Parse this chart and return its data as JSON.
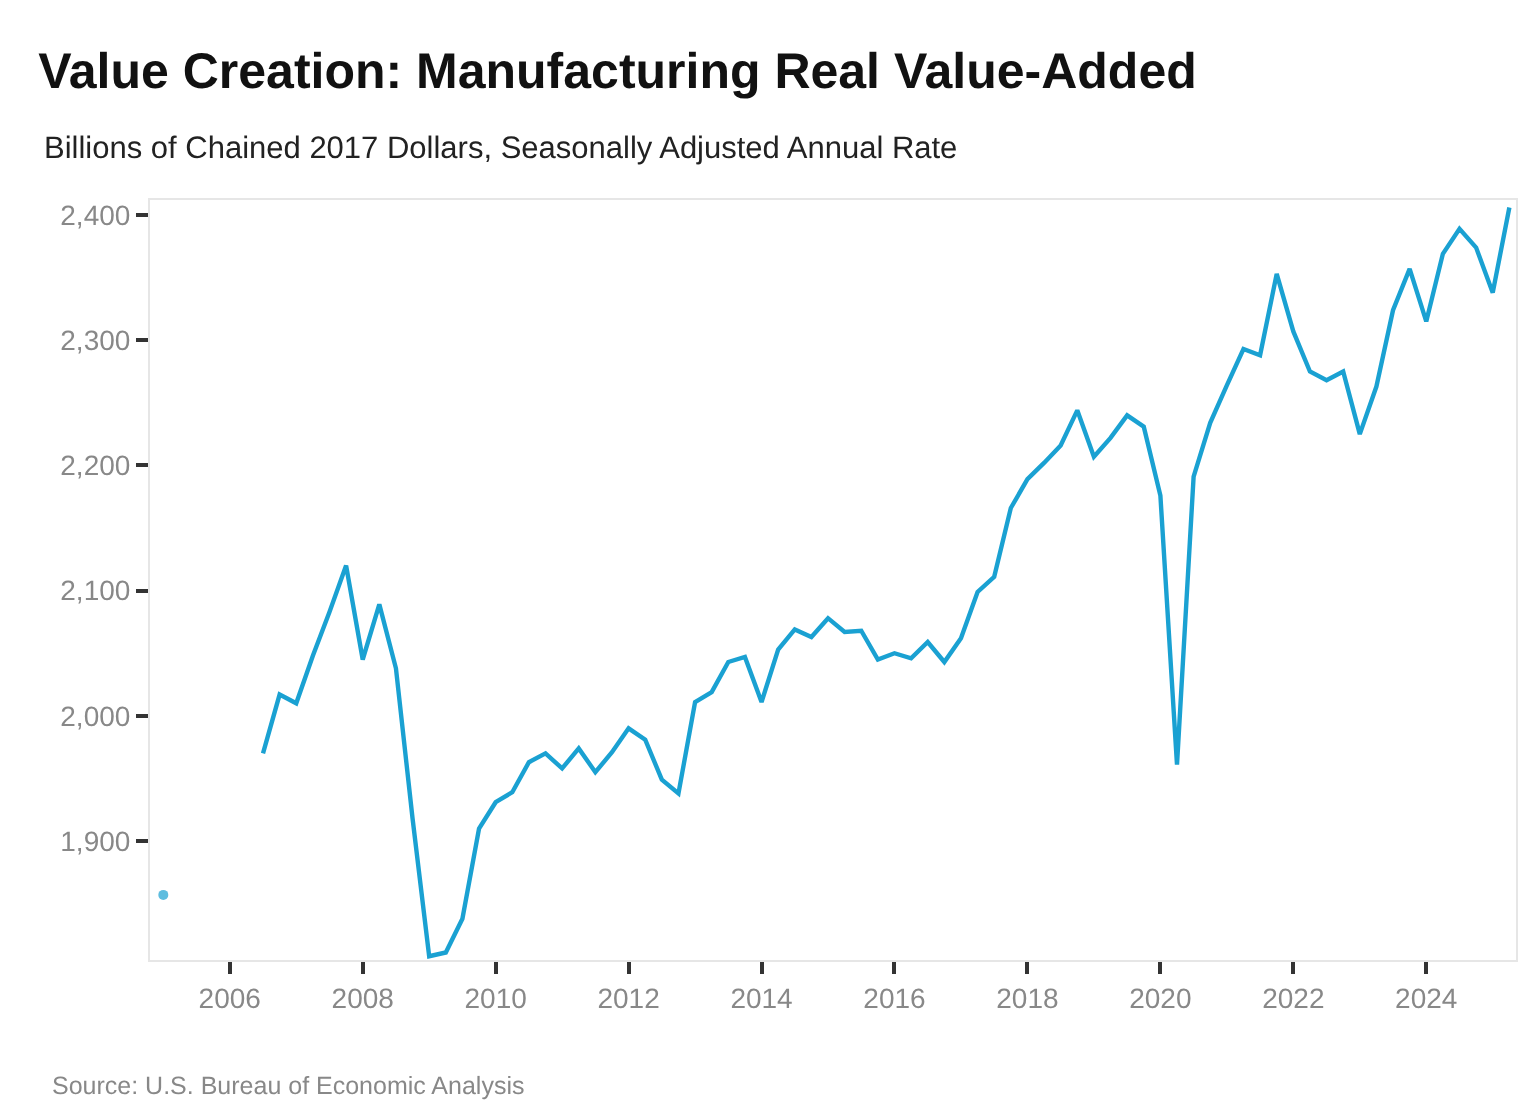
{
  "chart_data": {
    "type": "line",
    "title": "Value Creation: Manufacturing Real Value-Added",
    "subtitle": "Billions of Chained 2017 Dollars, Seasonally Adjusted Annual Rate",
    "annotations": [
      "Source: U.S. Bureau of Economic Analysis"
    ],
    "x": [
      2005.0,
      2005.25,
      2005.5,
      2005.75,
      2006.0,
      2006.25,
      2006.5,
      2006.75,
      2007.0,
      2007.25,
      2007.5,
      2007.75,
      2008.0,
      2008.25,
      2008.5,
      2008.75,
      2009.0,
      2009.25,
      2009.5,
      2009.75,
      2010.0,
      2010.25,
      2010.5,
      2010.75,
      2011.0,
      2011.25,
      2011.5,
      2011.75,
      2012.0,
      2012.25,
      2012.5,
      2012.75,
      2013.0,
      2013.25,
      2013.5,
      2013.75,
      2014.0,
      2014.25,
      2014.5,
      2014.75,
      2015.0,
      2015.25,
      2015.5,
      2015.75,
      2016.0,
      2016.25,
      2016.5,
      2016.75,
      2017.0,
      2017.25,
      2017.5,
      2017.75,
      2018.0,
      2018.25,
      2018.5,
      2018.75,
      2019.0,
      2019.25,
      2019.5,
      2019.75,
      2020.0,
      2020.25,
      2020.5,
      2020.75,
      2021.0,
      2021.25,
      2021.5,
      2021.75,
      2022.0,
      2022.25,
      2022.5,
      2022.75,
      2023.0,
      2023.25,
      2023.5,
      2023.75,
      2024.0,
      2024.25,
      2024.5,
      2024.75,
      2025.0,
      2025.25
    ],
    "series": [
      {
        "color": "#1aa1d2",
        "values": [
          1857,
          null,
          null,
          null,
          null,
          null,
          1970,
          2017,
          2010,
          2048,
          2083,
          2120,
          2045,
          2089,
          2038,
          1918,
          1808,
          1811,
          1838,
          1910,
          1931,
          1939,
          1963,
          1970,
          1958,
          1974,
          1955,
          1971,
          1990,
          1981,
          1949,
          1938,
          2011,
          2019,
          2043,
          2047,
          2011,
          2053,
          2069,
          2063,
          2078,
          2067,
          2068,
          2045,
          2050,
          2046,
          2059,
          2043,
          2062,
          2099,
          2111,
          2166,
          2189,
          2202,
          2216,
          2244,
          2207,
          2222,
          2240,
          2231,
          2176,
          1961,
          2191,
          2234,
          2264,
          2293,
          2288,
          2353,
          2307,
          2275,
          2268,
          2275,
          2225,
          2263,
          2324,
          2357,
          2315,
          2369,
          2389,
          2374,
          2338,
          2406
        ]
      }
    ],
    "xlim": [
      2004.8,
      2025.35
    ],
    "xticks": [
      2006,
      2008,
      2010,
      2012,
      2014,
      2016,
      2018,
      2020,
      2022,
      2024
    ],
    "ylim": [
      1805,
      2412
    ],
    "yticks": [
      {
        "value": 1900,
        "label": "1,900"
      },
      {
        "value": 2000,
        "label": "2,000"
      },
      {
        "value": 2100,
        "label": "2,100"
      },
      {
        "value": 2200,
        "label": "2,200"
      },
      {
        "value": 2300,
        "label": "2,300"
      },
      {
        "value": 2400,
        "label": "2,400"
      }
    ],
    "line_style": "solid"
  }
}
